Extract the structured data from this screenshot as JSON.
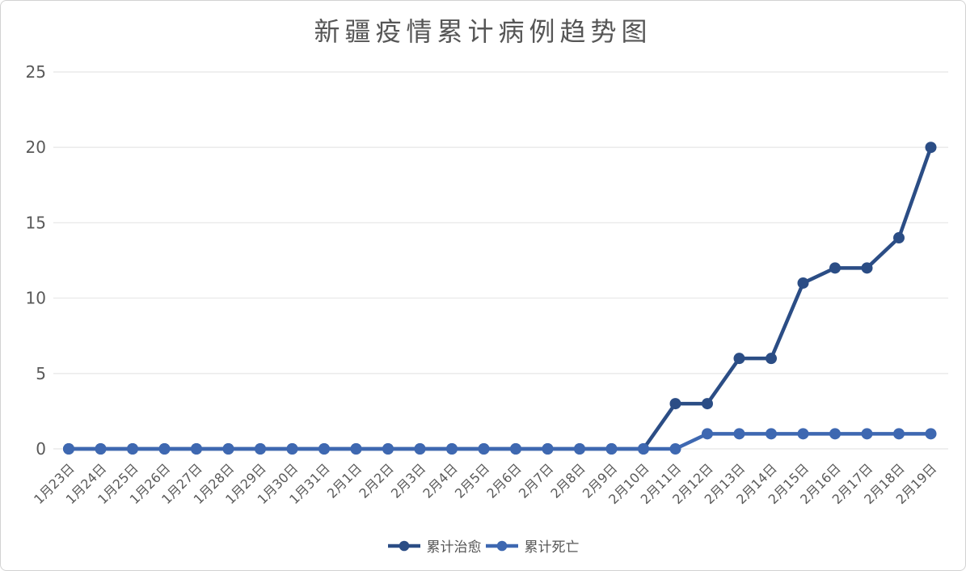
{
  "chart_data": {
    "type": "line",
    "title": "新疆疫情累计病例趋势图",
    "categories": [
      "1月23日",
      "1月24日",
      "1月25日",
      "1月26日",
      "1月27日",
      "1月28日",
      "1月29日",
      "1月30日",
      "1月31日",
      "2月1日",
      "2月2日",
      "2月3日",
      "2月4日",
      "2月5日",
      "2月6日",
      "2月7日",
      "2月8日",
      "2月9日",
      "2月10日",
      "2月11日",
      "2月12日",
      "2月13日",
      "2月14日",
      "2月15日",
      "2月16日",
      "2月17日",
      "2月18日",
      "2月19日"
    ],
    "series": [
      {
        "name": "累计治愈",
        "color": "#2b4d85",
        "values": [
          0,
          0,
          0,
          0,
          0,
          0,
          0,
          0,
          0,
          0,
          0,
          0,
          0,
          0,
          0,
          0,
          0,
          0,
          0,
          3,
          3,
          6,
          6,
          11,
          12,
          12,
          14,
          20
        ]
      },
      {
        "name": "累计死亡",
        "color": "#3e68b1",
        "values": [
          0,
          0,
          0,
          0,
          0,
          0,
          0,
          0,
          0,
          0,
          0,
          0,
          0,
          0,
          0,
          0,
          0,
          0,
          0,
          0,
          1,
          1,
          1,
          1,
          1,
          1,
          1,
          1
        ]
      }
    ],
    "ylim": [
      0,
      25
    ],
    "yticks": [
      0,
      5,
      10,
      15,
      20,
      25
    ],
    "xlabel": "",
    "ylabel": "",
    "grid": true,
    "legend_position": "bottom",
    "style": {
      "grid_color": "#eaeaea",
      "axis_label_color": "#595959",
      "title_color": "#565656",
      "legend_text_color": "#565656",
      "border_color": "#d2d2d2",
      "background": "#ffffff"
    }
  }
}
